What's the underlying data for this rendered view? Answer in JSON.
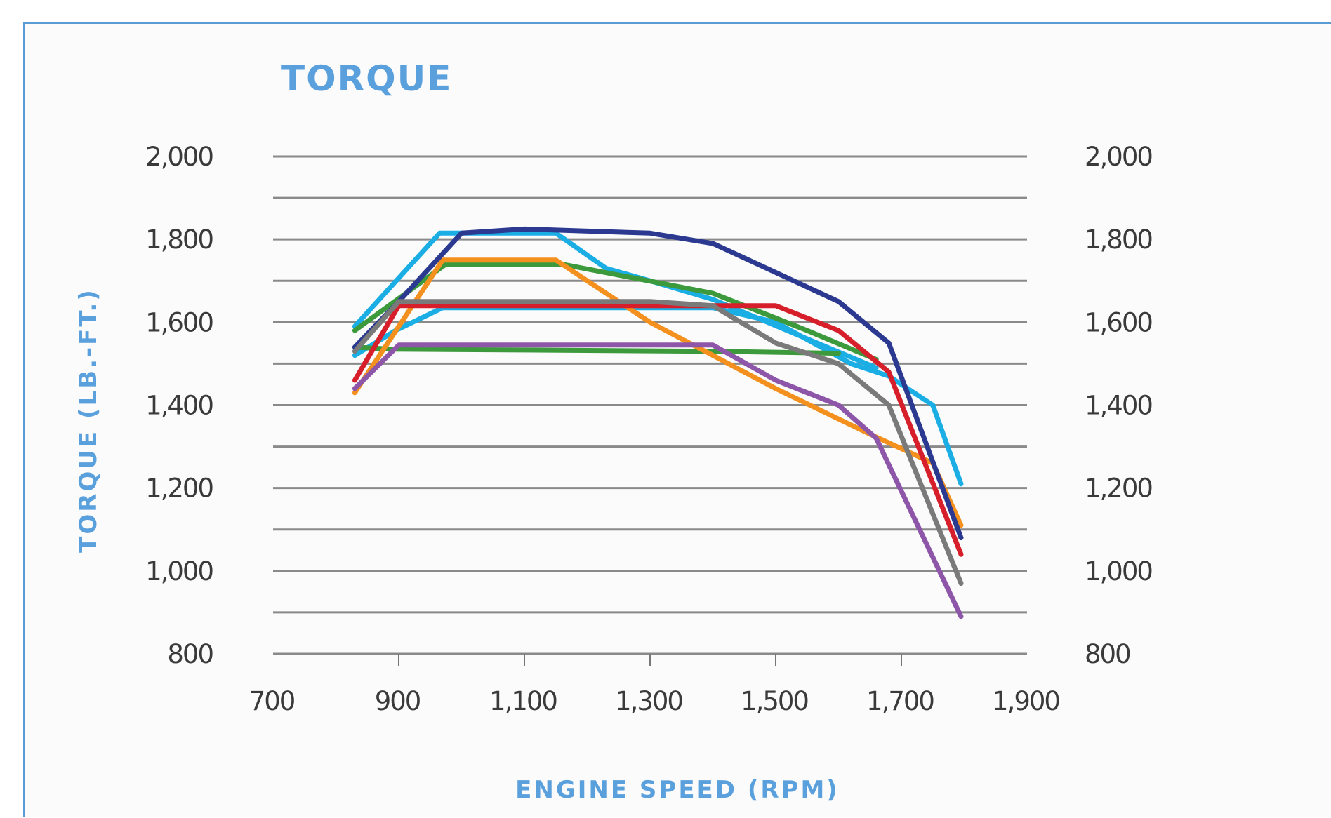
{
  "chart_data": {
    "type": "line",
    "title": "TORQUE",
    "xlabel": "ENGINE SPEED (RPM)",
    "ylabel": "TORQUE (LB.-FT.)",
    "xlim": [
      700,
      1900
    ],
    "ylim": [
      800,
      2000
    ],
    "x_ticks": [
      "700",
      "900",
      "1,100",
      "1,300",
      "1,500",
      "1,700",
      "1,900"
    ],
    "y_ticks": [
      "800",
      "1,000",
      "1,200",
      "1,400",
      "1,600",
      "1,800",
      "2,000"
    ],
    "y_tick_values": [
      800,
      1000,
      1200,
      1400,
      1600,
      1800,
      2000
    ],
    "x_tick_values": [
      700,
      900,
      1100,
      1300,
      1500,
      1700,
      1900
    ],
    "grid_values": [
      800,
      900,
      1000,
      1100,
      1200,
      1300,
      1400,
      1500,
      1600,
      1700,
      1800,
      1900,
      2000
    ],
    "grid": true,
    "legend": "none",
    "series": [
      {
        "color": "#1aaee5",
        "points": [
          [
            830,
            1520
          ],
          [
            895,
            1580
          ],
          [
            970,
            1635
          ],
          [
            1400,
            1635
          ],
          [
            1500,
            1600
          ],
          [
            1620,
            1500
          ],
          [
            1680,
            1470
          ],
          [
            1750,
            1400
          ],
          [
            1795,
            1210
          ]
        ]
      },
      {
        "color": "#1aaee5",
        "points": [
          [
            830,
            1590
          ],
          [
            965,
            1815
          ],
          [
            1000,
            1815
          ],
          [
            1150,
            1815
          ],
          [
            1230,
            1730
          ],
          [
            1300,
            1700
          ],
          [
            1400,
            1655
          ],
          [
            1550,
            1560
          ],
          [
            1660,
            1490
          ]
        ]
      },
      {
        "color": "#3c9a3c",
        "points": [
          [
            830,
            1580
          ],
          [
            975,
            1740
          ],
          [
            1160,
            1740
          ],
          [
            1400,
            1670
          ],
          [
            1550,
            1580
          ],
          [
            1660,
            1510
          ]
        ]
      },
      {
        "color": "#3c9a3c",
        "points": [
          [
            830,
            1540
          ],
          [
            890,
            1535
          ],
          [
            1400,
            1530
          ],
          [
            1600,
            1525
          ]
        ]
      },
      {
        "color": "#f4901e",
        "points": [
          [
            830,
            1430
          ],
          [
            970,
            1750
          ],
          [
            1150,
            1750
          ],
          [
            1300,
            1600
          ],
          [
            1400,
            1520
          ],
          [
            1500,
            1440
          ],
          [
            1650,
            1330
          ],
          [
            1750,
            1260
          ],
          [
            1795,
            1110
          ]
        ]
      },
      {
        "color": "#2b3990",
        "points": [
          [
            830,
            1540
          ],
          [
            900,
            1650
          ],
          [
            1000,
            1815
          ],
          [
            1100,
            1825
          ],
          [
            1300,
            1815
          ],
          [
            1400,
            1790
          ],
          [
            1500,
            1720
          ],
          [
            1600,
            1650
          ],
          [
            1680,
            1550
          ],
          [
            1795,
            1080
          ]
        ]
      },
      {
        "color": "#d61f2a",
        "points": [
          [
            830,
            1460
          ],
          [
            900,
            1640
          ],
          [
            1000,
            1640
          ],
          [
            1400,
            1640
          ],
          [
            1500,
            1640
          ],
          [
            1600,
            1580
          ],
          [
            1680,
            1480
          ],
          [
            1795,
            1040
          ]
        ]
      },
      {
        "color": "#7a7a7a",
        "points": [
          [
            830,
            1530
          ],
          [
            900,
            1650
          ],
          [
            1300,
            1650
          ],
          [
            1400,
            1640
          ],
          [
            1500,
            1550
          ],
          [
            1600,
            1500
          ],
          [
            1680,
            1400
          ],
          [
            1795,
            970
          ]
        ]
      },
      {
        "color": "#8e56a8",
        "points": [
          [
            830,
            1440
          ],
          [
            900,
            1545
          ],
          [
            1400,
            1545
          ],
          [
            1500,
            1460
          ],
          [
            1600,
            1400
          ],
          [
            1660,
            1320
          ],
          [
            1795,
            890
          ]
        ]
      }
    ]
  }
}
